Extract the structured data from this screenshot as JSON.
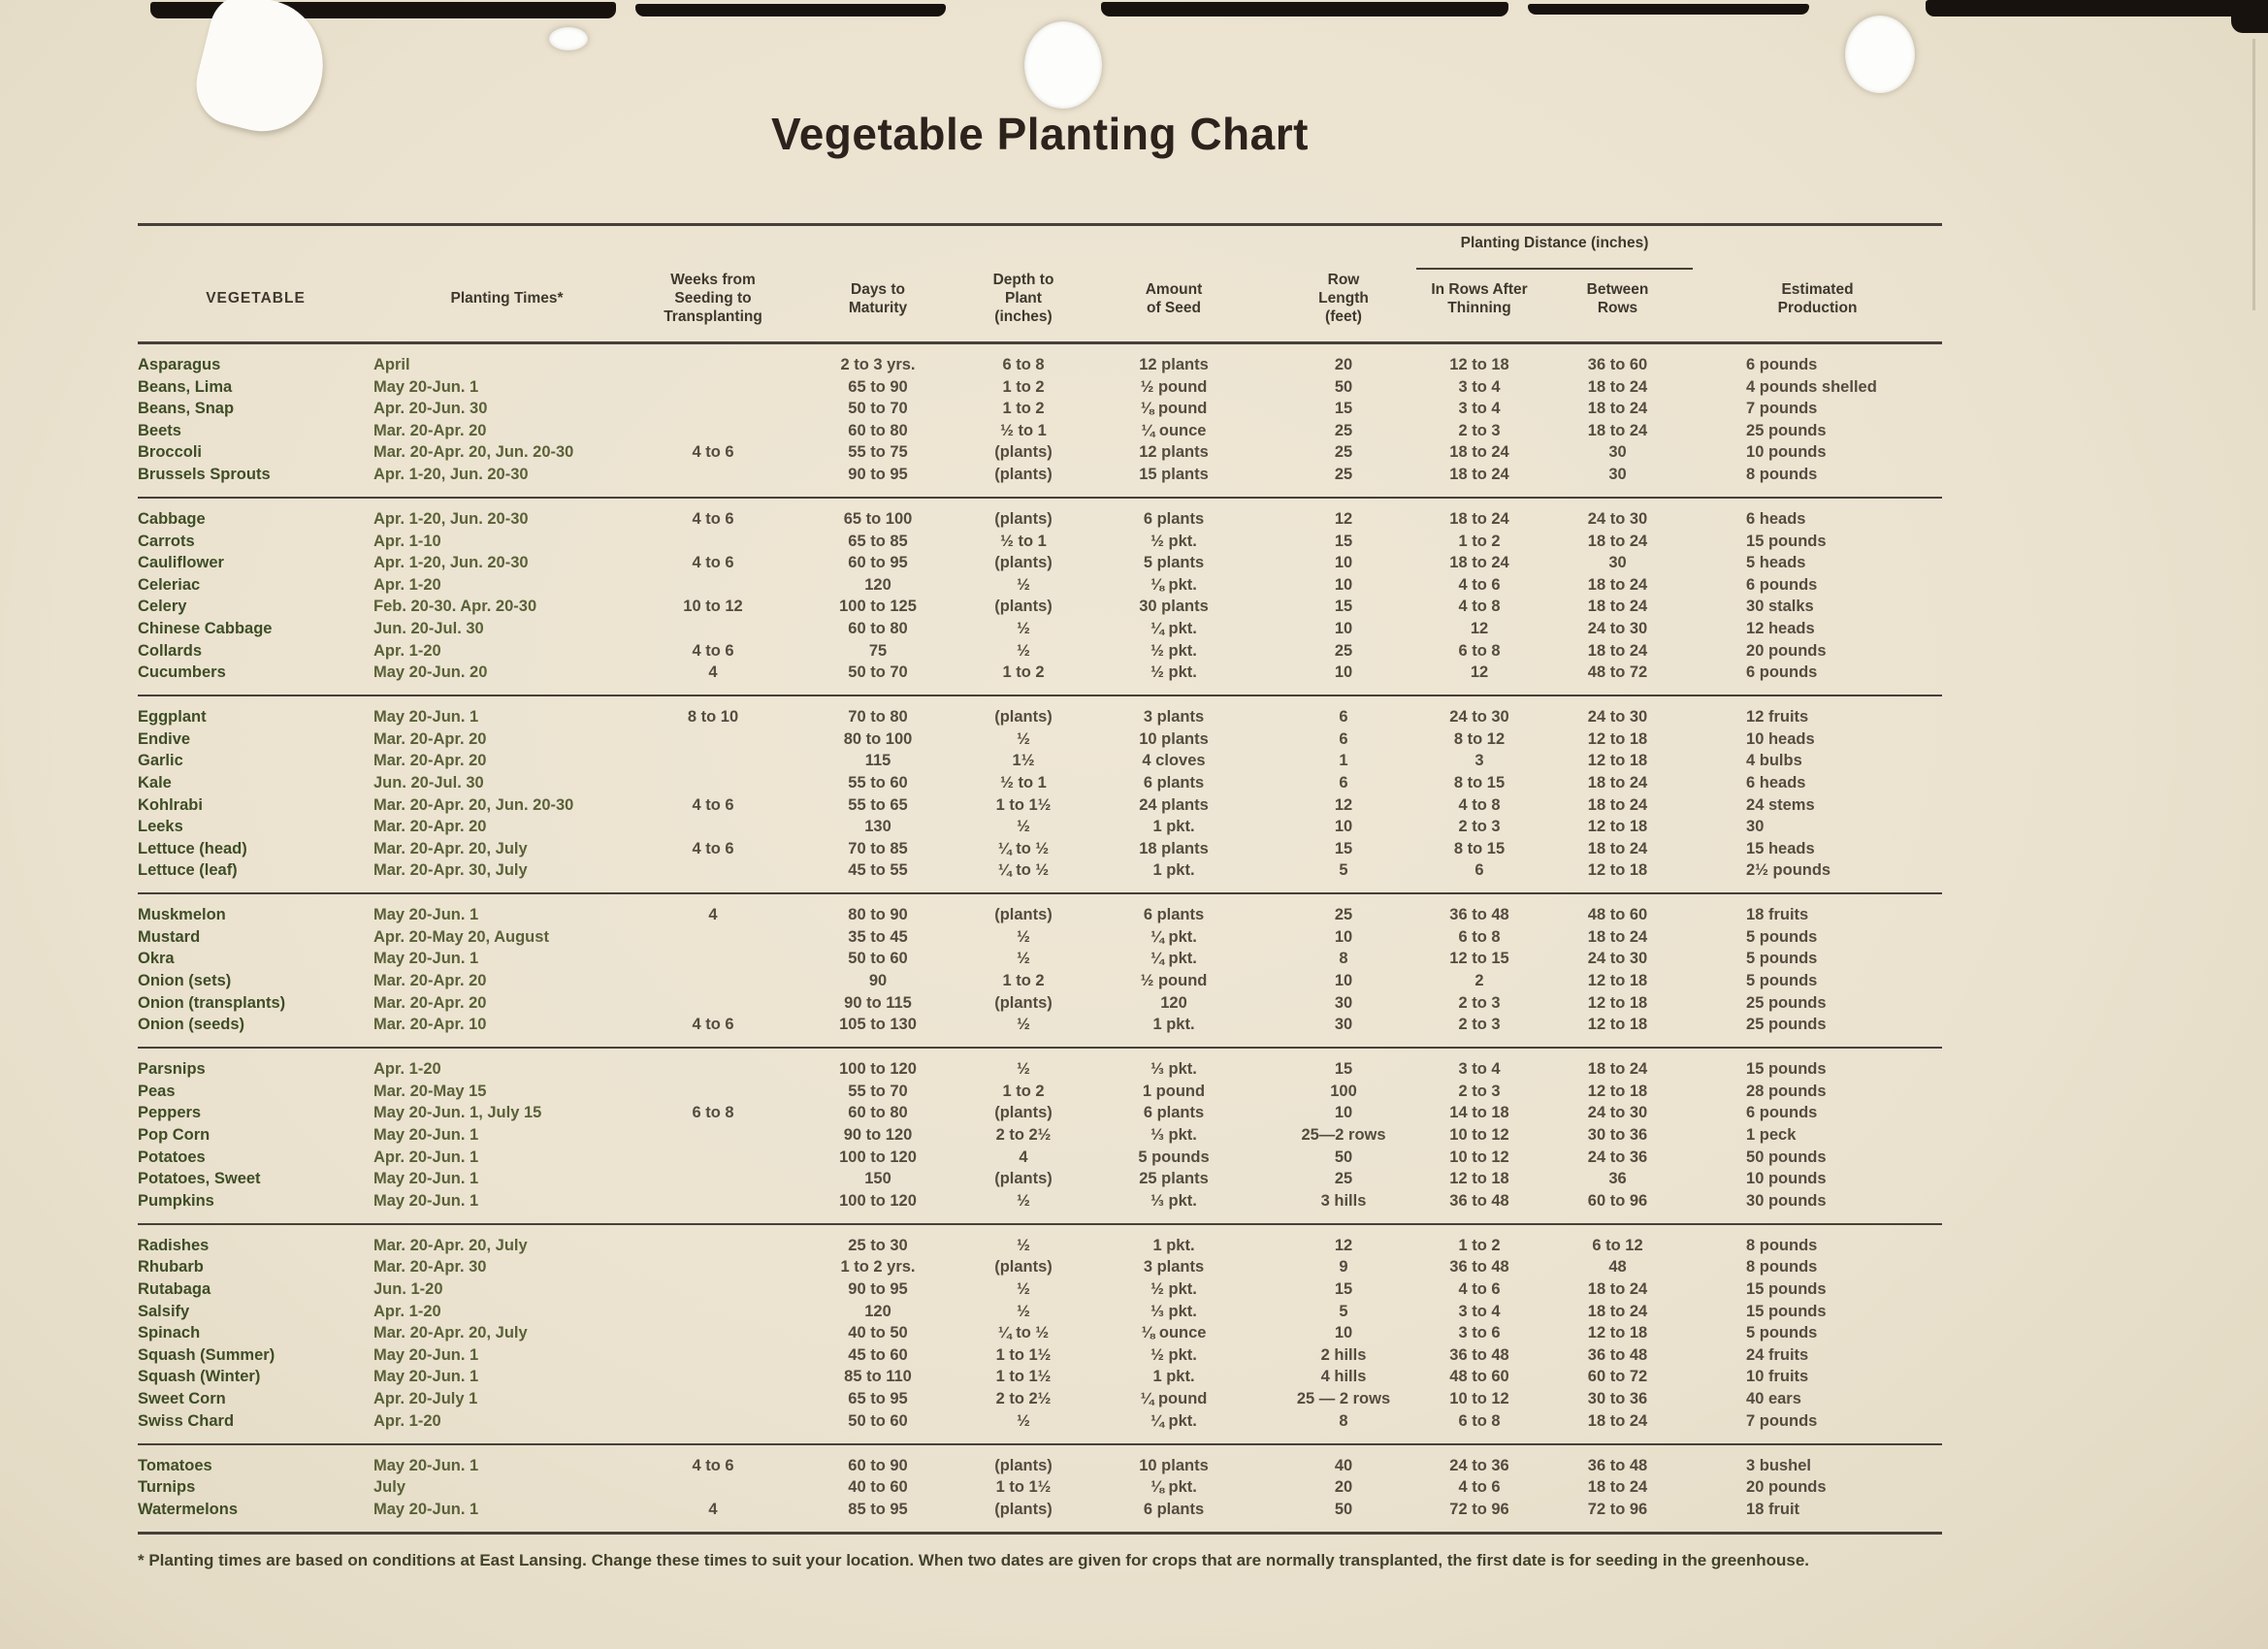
{
  "title": "Vegetable Planting Chart",
  "columns": {
    "vegetable": "VEGETABLE",
    "planting_times": "Planting Times*",
    "weeks": "Weeks from\nSeeding to\nTransplanting",
    "days": "Days to\nMaturity",
    "depth": "Depth to\nPlant\n(inches)",
    "amount": "Amount\nof Seed",
    "row_length": "Row\nLength\n(feet)",
    "planting_distance": "Planting Distance (inches)",
    "in_rows": "In Rows After\nThinning",
    "between_rows": "Between\nRows",
    "production": "Estimated\nProduction"
  },
  "groups": [
    {
      "rows": [
        [
          "Asparagus",
          "April",
          "",
          "2 to 3 yrs.",
          "6 to 8",
          "12 plants",
          "20",
          "12 to 18",
          "36 to 60",
          "6 pounds"
        ],
        [
          "Beans, Lima",
          "May 20-Jun. 1",
          "",
          "65 to 90",
          "1 to 2",
          "½ pound",
          "50",
          "3 to 4",
          "18 to 24",
          "4 pounds shelled"
        ],
        [
          "Beans, Snap",
          "Apr. 20-Jun. 30",
          "",
          "50 to 70",
          "1 to 2",
          "⅛ pound",
          "15",
          "3 to 4",
          "18 to 24",
          "7 pounds"
        ],
        [
          "Beets",
          "Mar. 20-Apr. 20",
          "",
          "60 to 80",
          "½ to 1",
          "¼ ounce",
          "25",
          "2 to 3",
          "18 to 24",
          "25 pounds"
        ],
        [
          "Broccoli",
          "Mar. 20-Apr. 20, Jun. 20-30",
          "4 to 6",
          "55 to 75",
          "(plants)",
          "12 plants",
          "25",
          "18 to 24",
          "30",
          "10 pounds"
        ],
        [
          "Brussels Sprouts",
          "Apr. 1-20, Jun. 20-30",
          "",
          "90 to 95",
          "(plants)",
          "15 plants",
          "25",
          "18 to 24",
          "30",
          "8 pounds"
        ]
      ]
    },
    {
      "rows": [
        [
          "Cabbage",
          "Apr. 1-20, Jun. 20-30",
          "4 to 6",
          "65 to 100",
          "(plants)",
          "6 plants",
          "12",
          "18 to 24",
          "24 to 30",
          "6 heads"
        ],
        [
          "Carrots",
          "Apr. 1-10",
          "",
          "65 to 85",
          "½ to 1",
          "½ pkt.",
          "15",
          "1 to 2",
          "18 to 24",
          "15 pounds"
        ],
        [
          "Cauliflower",
          "Apr. 1-20, Jun. 20-30",
          "4 to 6",
          "60 to 95",
          "(plants)",
          "5 plants",
          "10",
          "18 to 24",
          "30",
          "5 heads"
        ],
        [
          "Celeriac",
          "Apr. 1-20",
          "",
          "120",
          "½",
          "⅛ pkt.",
          "10",
          "4 to 6",
          "18 to 24",
          "6 pounds"
        ],
        [
          "Celery",
          "Feb. 20-30. Apr. 20-30",
          "10 to 12",
          "100 to 125",
          "(plants)",
          "30 plants",
          "15",
          "4 to 8",
          "18 to 24",
          "30 stalks"
        ],
        [
          "Chinese Cabbage",
          "Jun. 20-Jul. 30",
          "",
          "60 to 80",
          "½",
          "¼ pkt.",
          "10",
          "12",
          "24 to 30",
          "12 heads"
        ],
        [
          "Collards",
          "Apr. 1-20",
          "4 to 6",
          "75",
          "½",
          "½ pkt.",
          "25",
          "6 to 8",
          "18 to 24",
          "20 pounds"
        ],
        [
          "Cucumbers",
          "May 20-Jun. 20",
          "4",
          "50 to 70",
          "1 to 2",
          "½ pkt.",
          "10",
          "12",
          "48 to 72",
          "6 pounds"
        ]
      ]
    },
    {
      "rows": [
        [
          "Eggplant",
          "May 20-Jun. 1",
          "8 to 10",
          "70 to 80",
          "(plants)",
          "3 plants",
          "6",
          "24 to 30",
          "24 to 30",
          "12 fruits"
        ],
        [
          "Endive",
          "Mar. 20-Apr. 20",
          "",
          "80 to 100",
          "½",
          "10 plants",
          "6",
          "8 to 12",
          "12 to 18",
          "10 heads"
        ],
        [
          "Garlic",
          "Mar. 20-Apr. 20",
          "",
          "115",
          "1½",
          "4 cloves",
          "1",
          "3",
          "12 to 18",
          "4 bulbs"
        ],
        [
          "Kale",
          "Jun. 20-Jul. 30",
          "",
          "55 to 60",
          "½ to 1",
          "6 plants",
          "6",
          "8 to 15",
          "18 to 24",
          "6 heads"
        ],
        [
          "Kohlrabi",
          "Mar. 20-Apr. 20, Jun. 20-30",
          "4 to 6",
          "55 to 65",
          "1 to 1½",
          "24 plants",
          "12",
          "4 to 8",
          "18 to 24",
          "24 stems"
        ],
        [
          "Leeks",
          "Mar. 20-Apr. 20",
          "",
          "130",
          "½",
          "1 pkt.",
          "10",
          "2 to 3",
          "12 to 18",
          "30"
        ],
        [
          "Lettuce (head)",
          "Mar. 20-Apr. 20, July",
          "4 to 6",
          "70 to 85",
          "¼ to ½",
          "18 plants",
          "15",
          "8 to 15",
          "18 to 24",
          "15 heads"
        ],
        [
          "Lettuce (leaf)",
          "Mar. 20-Apr. 30, July",
          "",
          "45 to 55",
          "¼ to ½",
          "1 pkt.",
          "5",
          "6",
          "12 to 18",
          "2½ pounds"
        ]
      ]
    },
    {
      "rows": [
        [
          "Muskmelon",
          "May 20-Jun. 1",
          "4",
          "80 to 90",
          "(plants)",
          "6 plants",
          "25",
          "36 to 48",
          "48 to 60",
          "18 fruits"
        ],
        [
          "Mustard",
          "Apr. 20-May 20, August",
          "",
          "35 to 45",
          "½",
          "¼ pkt.",
          "10",
          "6 to 8",
          "18 to 24",
          "5 pounds"
        ],
        [
          "Okra",
          "May 20-Jun. 1",
          "",
          "50 to 60",
          "½",
          "¼ pkt.",
          "8",
          "12 to 15",
          "24 to 30",
          "5 pounds"
        ],
        [
          "Onion (sets)",
          "Mar. 20-Apr. 20",
          "",
          "90",
          "1 to 2",
          "½ pound",
          "10",
          "2",
          "12 to 18",
          "5 pounds"
        ],
        [
          "Onion (transplants)",
          "Mar. 20-Apr. 20",
          "",
          "90 to 115",
          "(plants)",
          "120",
          "30",
          "2 to 3",
          "12 to 18",
          "25 pounds"
        ],
        [
          "Onion (seeds)",
          "Mar. 20-Apr. 10",
          "4 to 6",
          "105 to 130",
          "½",
          "1 pkt.",
          "30",
          "2 to 3",
          "12 to 18",
          "25 pounds"
        ]
      ]
    },
    {
      "rows": [
        [
          "Parsnips",
          "Apr. 1-20",
          "",
          "100 to 120",
          "½",
          "⅓ pkt.",
          "15",
          "3 to 4",
          "18 to 24",
          "15 pounds"
        ],
        [
          "Peas",
          "Mar. 20-May 15",
          "",
          "55 to 70",
          "1 to 2",
          "1 pound",
          "100",
          "2 to 3",
          "12 to 18",
          "28 pounds"
        ],
        [
          "Peppers",
          "May 20-Jun. 1, July 15",
          "6 to 8",
          "60 to 80",
          "(plants)",
          "6 plants",
          "10",
          "14 to 18",
          "24 to 30",
          "6 pounds"
        ],
        [
          "Pop Corn",
          "May 20-Jun. 1",
          "",
          "90 to 120",
          "2 to 2½",
          "⅓ pkt.",
          "25—2 rows",
          "10 to 12",
          "30 to 36",
          "1 peck"
        ],
        [
          "Potatoes",
          "Apr. 20-Jun. 1",
          "",
          "100 to 120",
          "4",
          "5 pounds",
          "50",
          "10 to 12",
          "24 to 36",
          "50 pounds"
        ],
        [
          "Potatoes, Sweet",
          "May 20-Jun. 1",
          "",
          "150",
          "(plants)",
          "25 plants",
          "25",
          "12 to 18",
          "36",
          "10 pounds"
        ],
        [
          "Pumpkins",
          "May 20-Jun. 1",
          "",
          "100 to 120",
          "½",
          "⅓ pkt.",
          "3 hills",
          "36 to 48",
          "60 to 96",
          "30 pounds"
        ]
      ]
    },
    {
      "rows": [
        [
          "Radishes",
          "Mar. 20-Apr. 20, July",
          "",
          "25 to 30",
          "½",
          "1 pkt.",
          "12",
          "1 to 2",
          "6 to 12",
          "8 pounds"
        ],
        [
          "Rhubarb",
          "Mar. 20-Apr. 30",
          "",
          "1 to 2 yrs.",
          "(plants)",
          "3 plants",
          "9",
          "36 to 48",
          "48",
          "8 pounds"
        ],
        [
          "Rutabaga",
          "Jun. 1-20",
          "",
          "90 to 95",
          "½",
          "½ pkt.",
          "15",
          "4 to 6",
          "18 to 24",
          "15 pounds"
        ],
        [
          "Salsify",
          "Apr. 1-20",
          "",
          "120",
          "½",
          "⅓ pkt.",
          "5",
          "3 to 4",
          "18 to 24",
          "15 pounds"
        ],
        [
          "Spinach",
          "Mar. 20-Apr. 20, July",
          "",
          "40 to 50",
          "¼ to ½",
          "⅛ ounce",
          "10",
          "3 to 6",
          "12 to 18",
          "5 pounds"
        ],
        [
          "Squash (Summer)",
          "May 20-Jun. 1",
          "",
          "45 to 60",
          "1 to 1½",
          "½ pkt.",
          "2 hills",
          "36 to 48",
          "36 to 48",
          "24 fruits"
        ],
        [
          "Squash (Winter)",
          "May 20-Jun. 1",
          "",
          "85 to 110",
          "1 to 1½",
          "1 pkt.",
          "4 hills",
          "48 to 60",
          "60 to 72",
          "10 fruits"
        ],
        [
          "Sweet Corn",
          "Apr. 20-July 1",
          "",
          "65 to 95",
          "2 to 2½",
          "¼ pound",
          "25 — 2 rows",
          "10 to 12",
          "30 to 36",
          "40 ears"
        ],
        [
          "Swiss Chard",
          "Apr. 1-20",
          "",
          "50 to 60",
          "½",
          "¼ pkt.",
          "8",
          "6 to 8",
          "18 to 24",
          "7 pounds"
        ]
      ]
    },
    {
      "rows": [
        [
          "Tomatoes",
          "May 20-Jun. 1",
          "4 to 6",
          "60 to 90",
          "(plants)",
          "10 plants",
          "40",
          "24 to 36",
          "36 to 48",
          "3 bushel"
        ],
        [
          "Turnips",
          "July",
          "",
          "40 to 60",
          "1 to 1½",
          "⅛ pkt.",
          "20",
          "4 to 6",
          "18 to 24",
          "20 pounds"
        ],
        [
          "Watermelons",
          "May 20-Jun. 1",
          "4",
          "85 to 95",
          "(plants)",
          "6 plants",
          "50",
          "72 to 96",
          "72 to 96",
          "18 fruit"
        ]
      ]
    }
  ],
  "footnote": "* Planting times are based on conditions at East Lansing. Change these times to suit your location. When two dates are given for crops that are normally transplanted, the first date is for seeding in the greenhouse."
}
